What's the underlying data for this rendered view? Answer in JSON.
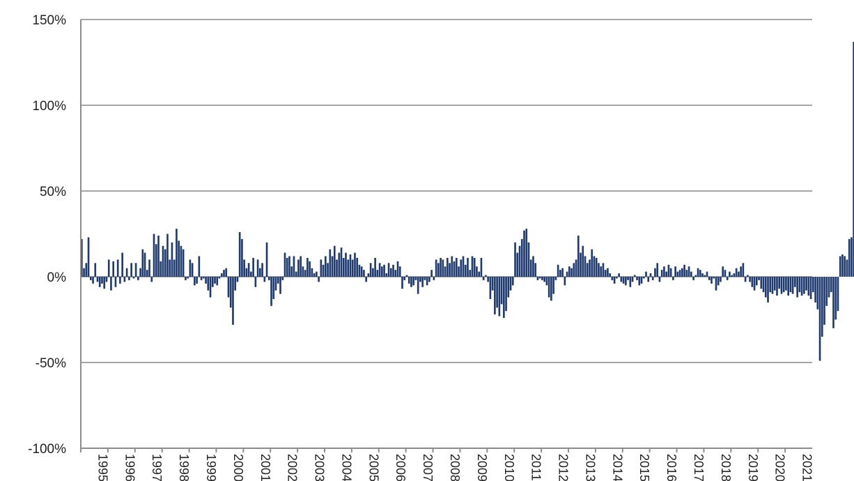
{
  "chart_data": {
    "type": "bar",
    "title": "",
    "xlabel": "",
    "ylabel": "",
    "ylim": [
      -100,
      150
    ],
    "yticks": [
      150,
      100,
      50,
      0,
      -50,
      -100
    ],
    "ytick_labels": [
      "150%",
      "100%",
      "50%",
      "0%",
      "-50%",
      "-100%"
    ],
    "xtick_labels": [
      "1995",
      "1996",
      "1997",
      "1998",
      "1999",
      "2000",
      "2001",
      "2002",
      "2003",
      "2004",
      "2005",
      "2006",
      "2007",
      "2008",
      "2009",
      "2010",
      "2011",
      "2012",
      "2013",
      "2014",
      "2015",
      "2016",
      "2017",
      "2018",
      "2019",
      "2020",
      "2021"
    ],
    "grid": true,
    "legend": "none",
    "bar_color": "#1f3a6e",
    "x_start": "1995-01",
    "frequency": "monthly",
    "values": [
      22,
      5,
      8,
      23,
      -2,
      -4,
      8,
      -3,
      -6,
      -4,
      -7,
      -3,
      10,
      -8,
      9,
      -6,
      10,
      -4,
      14,
      -3,
      5,
      -2,
      8,
      -1,
      8,
      -2,
      5,
      16,
      14,
      4,
      10,
      -3,
      25,
      19,
      24,
      9,
      18,
      16,
      25,
      10,
      20,
      10,
      28,
      21,
      18,
      16,
      -2,
      -1,
      10,
      8,
      -5,
      -4,
      12,
      -2,
      -1,
      -4,
      -8,
      -12,
      -6,
      -4,
      -5,
      -1,
      2,
      4,
      5,
      -12,
      -18,
      -28,
      -8,
      -3,
      26,
      22,
      10,
      5,
      8,
      3,
      11,
      -6,
      10,
      5,
      8,
      -3,
      20,
      -2,
      -17,
      -13,
      -8,
      -4,
      -10,
      -2,
      14,
      11,
      12,
      6,
      12,
      3,
      10,
      12,
      6,
      4,
      11,
      9,
      5,
      2,
      3,
      -3,
      10,
      7,
      12,
      8,
      16,
      12,
      18,
      10,
      14,
      17,
      11,
      14,
      10,
      13,
      10,
      14,
      11,
      7,
      6,
      4,
      -3,
      2,
      8,
      5,
      11,
      4,
      8,
      6,
      7,
      2,
      8,
      5,
      7,
      4,
      9,
      6,
      -7,
      -2,
      1,
      -4,
      -6,
      -5,
      -2,
      -10,
      -3,
      -6,
      -2,
      -5,
      -3,
      4,
      -2,
      10,
      8,
      11,
      10,
      6,
      11,
      8,
      12,
      9,
      11,
      6,
      10,
      12,
      7,
      11,
      4,
      12,
      11,
      6,
      3,
      11,
      -2,
      1,
      -3,
      -13,
      -8,
      -22,
      -18,
      -23,
      -16,
      -24,
      -20,
      -12,
      -8,
      -5,
      20,
      14,
      18,
      22,
      27,
      28,
      20,
      10,
      12,
      8,
      -2,
      -1,
      -2,
      -3,
      -5,
      -12,
      -14,
      -10,
      -2,
      7,
      4,
      5,
      -5,
      3,
      6,
      5,
      8,
      10,
      24,
      14,
      18,
      12,
      8,
      10,
      16,
      12,
      11,
      8,
      6,
      8,
      4,
      5,
      2,
      -2,
      -4,
      -1,
      2,
      -3,
      -4,
      -5,
      -2,
      -6,
      -3,
      1,
      -2,
      -5,
      -4,
      -1,
      3,
      -3,
      2,
      -2,
      5,
      8,
      -3,
      4,
      6,
      3,
      7,
      5,
      -2,
      6,
      3,
      4,
      5,
      7,
      4,
      6,
      3,
      -2,
      1,
      5,
      4,
      2,
      1,
      3,
      -2,
      -4,
      -1,
      -8,
      -5,
      -3,
      6,
      4,
      -2,
      3,
      1,
      2,
      5,
      3,
      6,
      8,
      -3,
      1,
      -3,
      -6,
      -8,
      -5,
      -2,
      -7,
      -9,
      -12,
      -15,
      -9,
      -10,
      -8,
      -11,
      -7,
      -10,
      -9,
      -8,
      -11,
      -9,
      -10,
      -6,
      -12,
      -9,
      -11,
      -10,
      -8,
      -11,
      -13,
      -9,
      -15,
      -19,
      -49,
      -35,
      -28,
      -17,
      -12,
      -9,
      -30,
      -25,
      -20,
      12,
      13,
      12,
      10,
      22,
      23,
      137
    ]
  }
}
